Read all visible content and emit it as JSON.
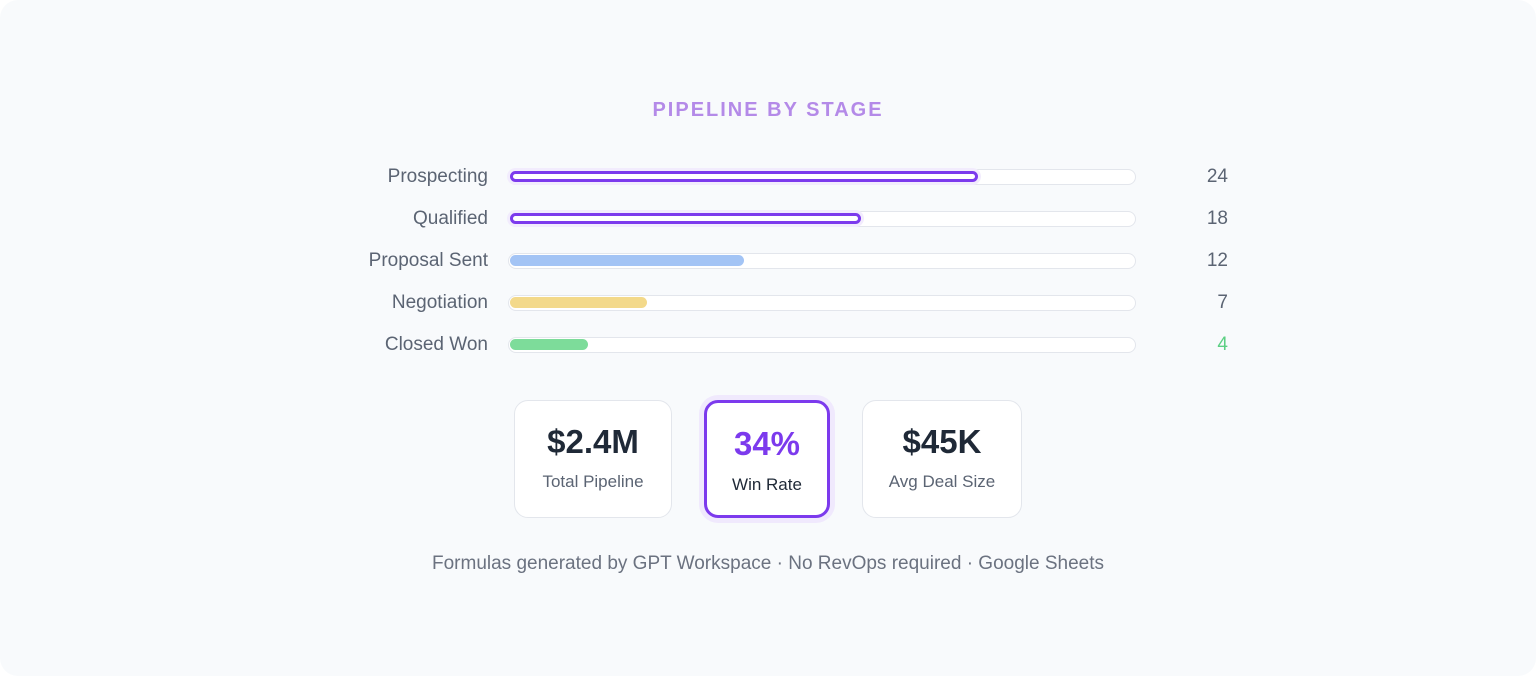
{
  "colors": {
    "accent": "#7c3aed",
    "blue": "#a3c4f5",
    "yellow": "#f3d98a",
    "green": "#7ddc9a",
    "green_text": "#5ccf83"
  },
  "chart_data": {
    "type": "bar",
    "orientation": "horizontal",
    "title": "PIPELINE BY STAGE",
    "categories": [
      "Prospecting",
      "Qualified",
      "Proposal Sent",
      "Negotiation",
      "Closed Won"
    ],
    "values": [
      24,
      18,
      12,
      7,
      4
    ],
    "styles": [
      "outlined",
      "outlined",
      "blue",
      "yellow",
      "green"
    ],
    "xlim": [
      0,
      32
    ]
  },
  "metrics": [
    {
      "value": "$2.4M",
      "label": "Total Pipeline"
    },
    {
      "value": "34%",
      "label": "Win Rate"
    },
    {
      "value": "$45K",
      "label": "Avg Deal Size"
    }
  ],
  "footer": "Formulas generated by GPT Workspace · No RevOps required · Google Sheets"
}
